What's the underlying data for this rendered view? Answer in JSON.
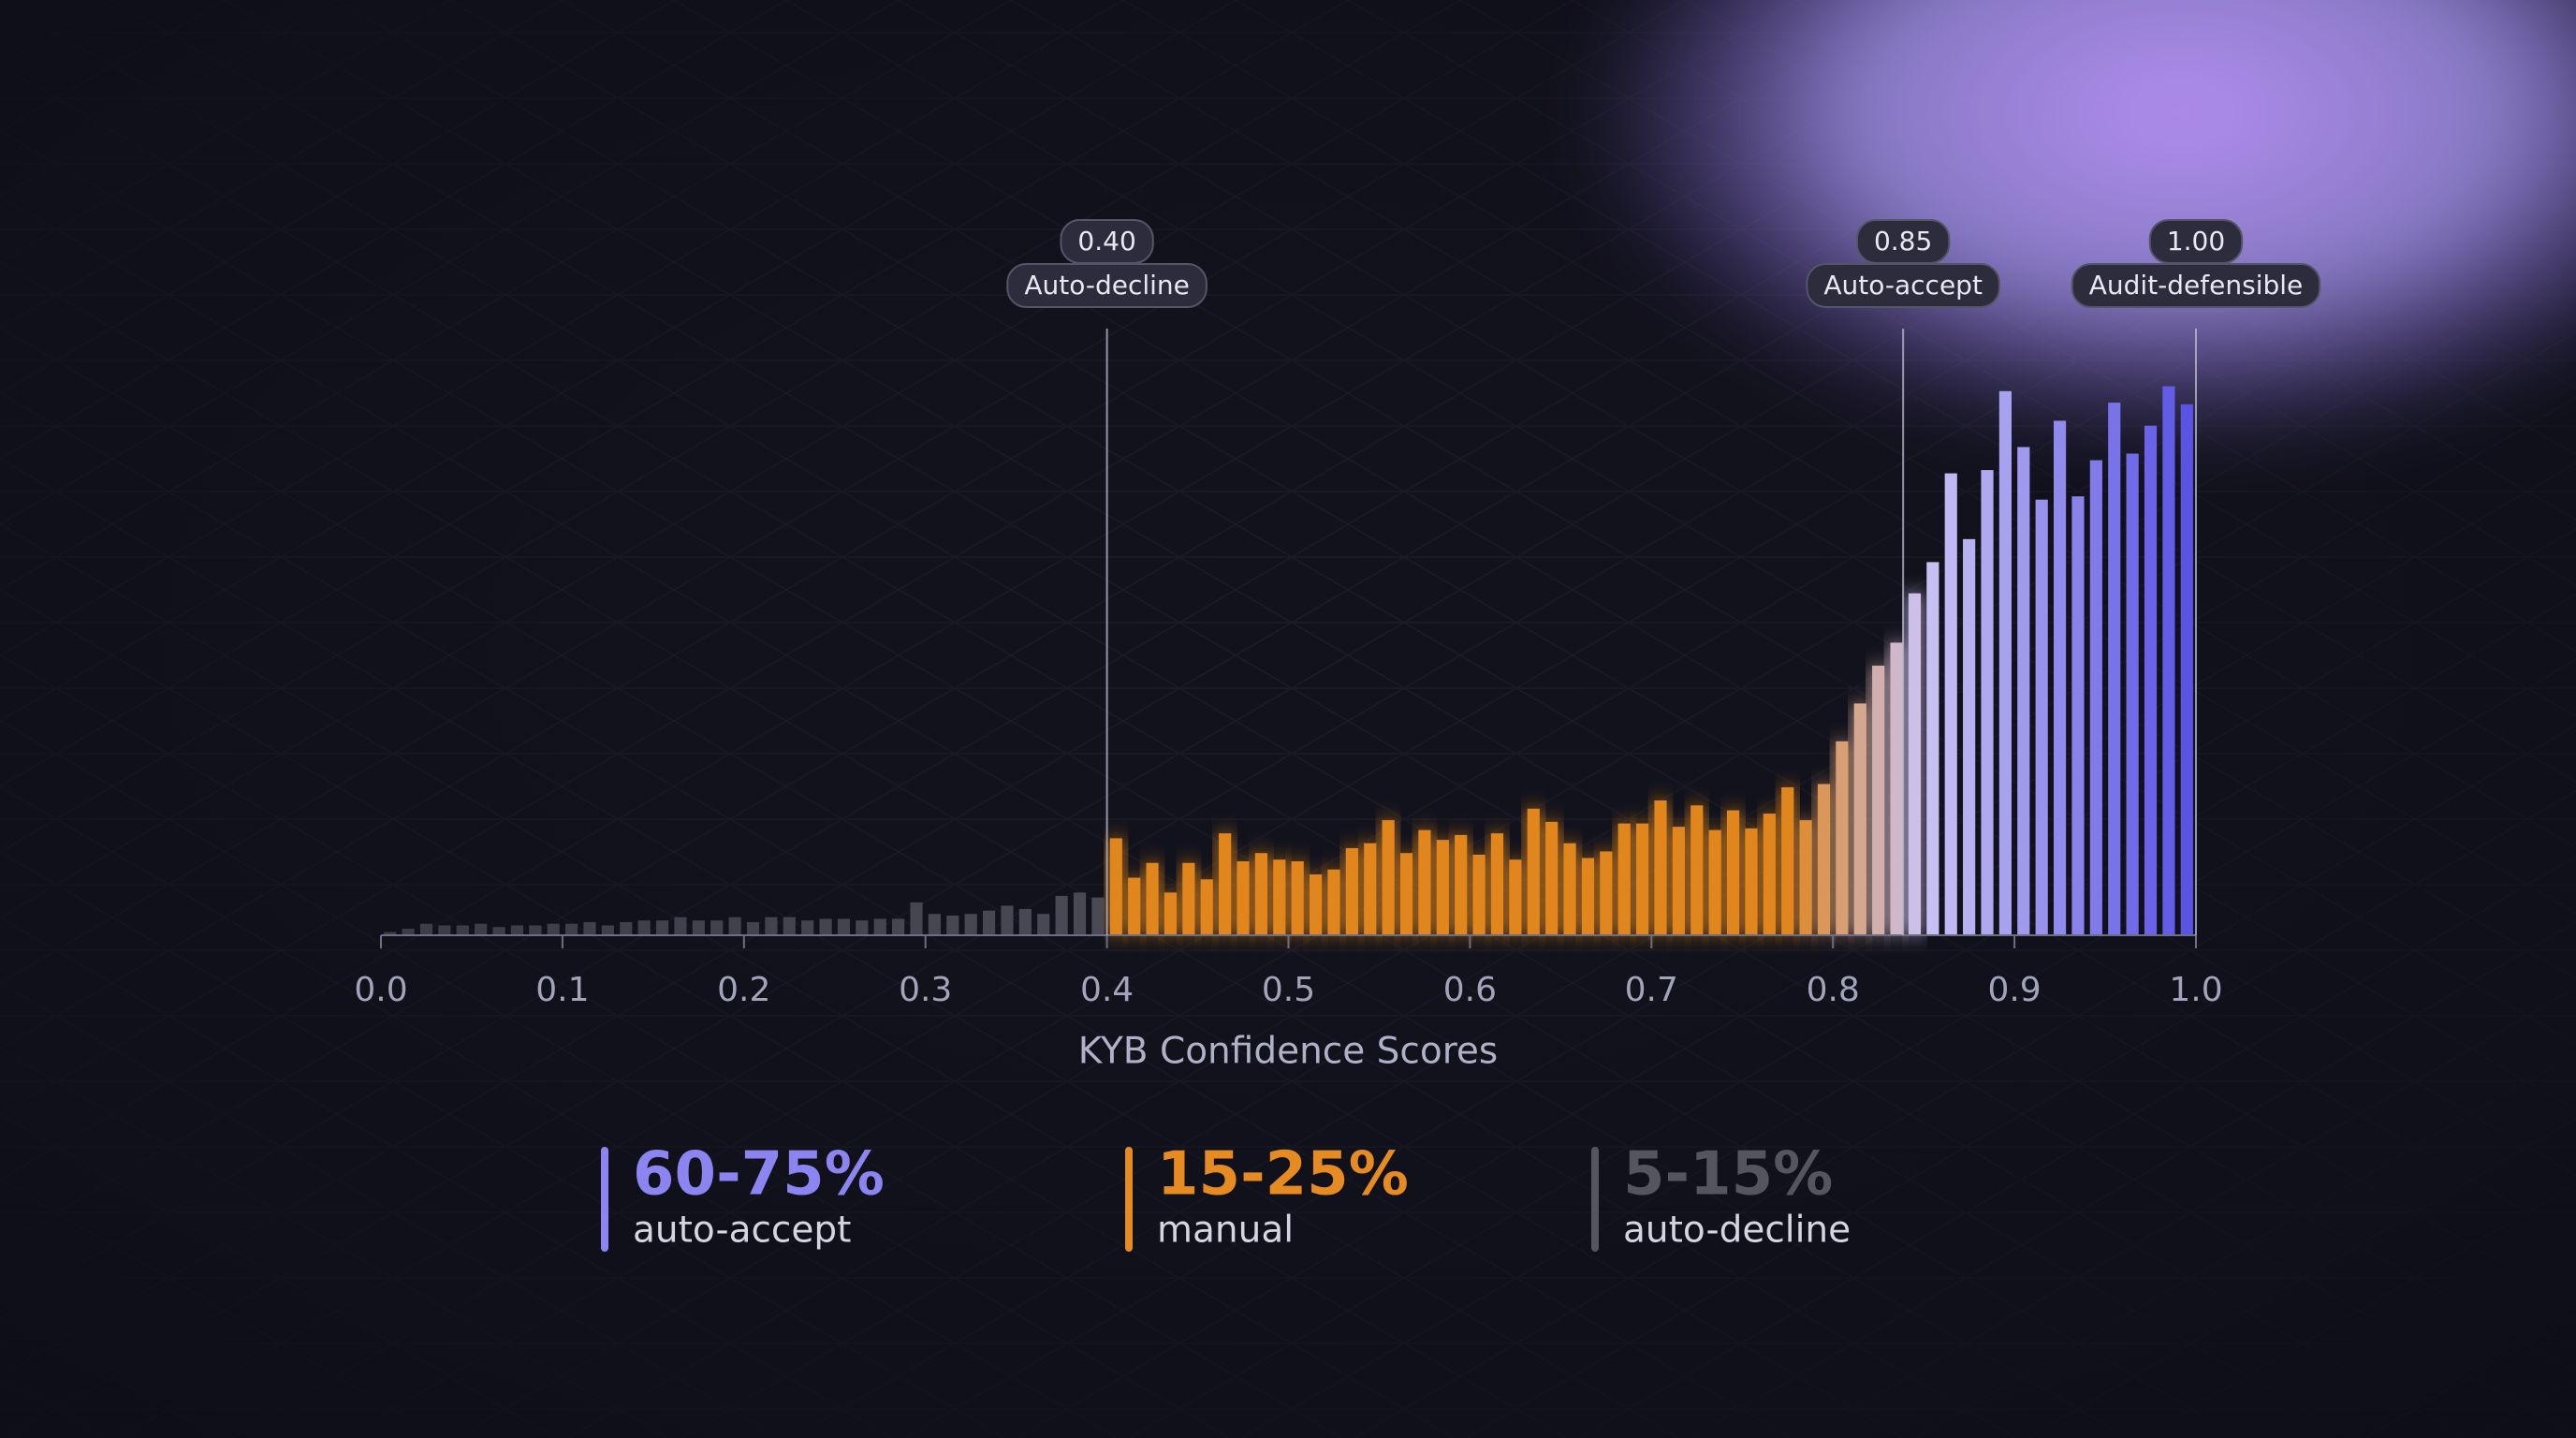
{
  "chart_data": {
    "type": "histogram",
    "x_label": "KYB Confidence Scores",
    "bins": [
      0,
      0.01,
      0.02,
      0.03,
      0.04,
      0.05,
      0.06,
      0.07,
      0.08,
      0.09,
      0.1,
      0.11,
      0.12,
      0.13,
      0.14,
      0.15,
      0.16,
      0.17,
      0.18,
      0.19,
      0.2,
      0.21,
      0.22,
      0.23,
      0.24,
      0.25,
      0.26,
      0.27,
      0.28,
      0.29,
      0.3,
      0.31,
      0.32,
      0.33,
      0.34,
      0.35,
      0.36,
      0.37,
      0.38,
      0.39,
      0.4,
      0.41,
      0.42,
      0.43,
      0.44,
      0.45,
      0.46,
      0.47,
      0.48,
      0.49,
      0.5,
      0.51,
      0.52,
      0.53,
      0.54,
      0.55,
      0.56,
      0.57,
      0.58,
      0.59,
      0.6,
      0.61,
      0.62,
      0.63,
      0.64,
      0.65,
      0.66,
      0.67,
      0.68,
      0.69,
      0.7,
      0.71,
      0.72,
      0.73,
      0.74,
      0.75,
      0.76,
      0.77,
      0.78,
      0.79,
      0.8,
      0.81,
      0.82,
      0.83,
      0.84,
      0.85,
      0.86,
      0.87,
      0.88,
      0.89,
      0.9,
      0.91,
      0.92,
      0.93,
      0.94,
      0.95,
      0.96,
      0.97,
      0.98,
      0.99,
      1
    ],
    "counts": [
      2,
      4,
      7,
      6,
      6,
      7,
      5,
      6,
      6,
      7,
      7,
      8,
      6,
      8,
      9,
      9,
      11,
      9,
      9,
      11,
      8,
      11,
      11,
      9,
      10,
      10,
      9,
      10,
      10,
      20,
      13,
      12,
      13,
      15,
      18,
      16,
      13,
      24,
      26,
      23,
      59,
      35,
      44,
      26,
      44,
      34,
      62,
      45,
      50,
      46,
      45,
      37,
      40,
      53,
      56,
      70,
      50,
      64,
      58,
      61,
      49,
      62,
      46,
      77,
      69,
      56,
      47,
      51,
      68,
      68,
      82,
      66,
      79,
      64,
      76,
      65,
      74,
      90,
      70,
      92,
      118,
      141,
      164,
      178,
      208,
      227,
      281,
      241,
      283,
      331,
      297,
      265,
      313,
      267,
      289,
      324,
      293,
      310,
      334,
      323
    ],
    "xlim": [
      0,
      1
    ],
    "ylim": [
      0,
      340
    ],
    "xticks": [
      {
        "value": 0,
        "label": "0.0"
      },
      0.1,
      0.2,
      0.3,
      0.4,
      0.5,
      0.6,
      0.7,
      0.8,
      0.9,
      {
        "value": 1,
        "label": "1.0"
      }
    ],
    "thresholds": [
      {
        "value": 0.4,
        "label": "0.40",
        "name": "Auto-decline"
      },
      {
        "value": 0.85,
        "label": "0.85",
        "name": "Auto-accept"
      },
      {
        "value": 1,
        "label": "1.00",
        "name": "Audit-defensible"
      }
    ],
    "colors": {
      "decline": "#4a4a56",
      "manual": "#e0861f",
      "accept_start": "#cbc4f4",
      "accept_end": "#5650e4"
    },
    "stats": [
      {
        "value": "60-75%",
        "label": "auto-accept",
        "color": "#8c84f0"
      },
      {
        "value": "15-25%",
        "label": "manual",
        "color": "#e58b22"
      },
      {
        "value": "5-15%",
        "label": "auto-decline",
        "color": "#55555f"
      }
    ]
  }
}
